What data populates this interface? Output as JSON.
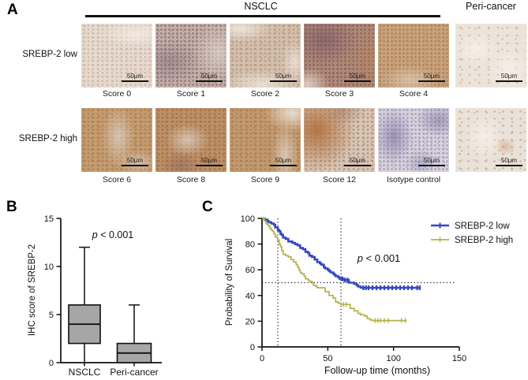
{
  "figure": {
    "panel_a": {
      "label": "A",
      "nsclc_header": "NSCLC",
      "peri_header": "Peri-cancer",
      "scale_label": "50μm",
      "rows": [
        {
          "row_label": "SREBP-2 low",
          "images": [
            {
              "id": "score-0",
              "caption": "Score 0"
            },
            {
              "id": "score-1",
              "caption": "Score 1"
            },
            {
              "id": "score-2",
              "caption": "Score 2"
            },
            {
              "id": "score-3",
              "caption": "Score 3"
            },
            {
              "id": "score-4",
              "caption": "Score 4"
            },
            {
              "id": "peri",
              "caption": ""
            }
          ]
        },
        {
          "row_label": "SREBP-2 high",
          "images": [
            {
              "id": "score-6",
              "caption": "Score 6"
            },
            {
              "id": "score-8",
              "caption": "Score 8"
            },
            {
              "id": "score-9",
              "caption": "Score 9"
            },
            {
              "id": "score-12",
              "caption": "Score 12"
            },
            {
              "id": "isotype",
              "caption": "Isotype control"
            },
            {
              "id": "peri2",
              "caption": ""
            }
          ]
        }
      ]
    },
    "panel_b": {
      "label": "B"
    },
    "panel_c": {
      "label": "C"
    }
  },
  "chart_data": [
    {
      "type": "boxplot",
      "panel": "B",
      "ylabel": "IHC score of SREBP-2",
      "ylim": [
        0,
        15
      ],
      "yticks": [
        0,
        5,
        10,
        15
      ],
      "categories": [
        "NSCLC",
        "Peri-cancer"
      ],
      "boxes": [
        {
          "category": "NSCLC",
          "min": 0,
          "q1": 2,
          "median": 4,
          "q3": 6,
          "max": 12
        },
        {
          "category": "Peri-cancer",
          "min": 0,
          "q1": 0,
          "median": 1,
          "q3": 2,
          "max": 6
        }
      ],
      "annotation": "p < 0.001",
      "box_fill": "#a6a6a6",
      "grid": false
    },
    {
      "type": "line",
      "subtype": "kaplan-meier-step",
      "panel": "C",
      "xlabel": "Follow-up time (months)",
      "ylabel": "Probability of Survival",
      "xlim": [
        0,
        150
      ],
      "ylim": [
        0,
        100
      ],
      "xticks": [
        0,
        50,
        100,
        150
      ],
      "yticks": [
        0,
        20,
        40,
        60,
        80,
        100
      ],
      "annotation": "p < 0.001",
      "legend_position": "top-right",
      "grid": false,
      "reference_lines": {
        "vertical_months": [
          12,
          60
        ],
        "horizontal_percent": 50
      },
      "series": [
        {
          "name": "SREBP-2 low",
          "color": "#3548c0",
          "steps": [
            [
              0,
              100
            ],
            [
              2,
              99
            ],
            [
              4,
              98
            ],
            [
              5,
              97
            ],
            [
              7,
              96
            ],
            [
              9,
              95
            ],
            [
              10,
              93
            ],
            [
              12,
              91
            ],
            [
              13,
              90
            ],
            [
              14,
              88
            ],
            [
              15,
              87
            ],
            [
              16,
              85
            ],
            [
              18,
              84
            ],
            [
              20,
              82
            ],
            [
              23,
              81
            ],
            [
              25,
              80
            ],
            [
              27,
              79
            ],
            [
              29,
              77
            ],
            [
              31,
              76
            ],
            [
              33,
              74
            ],
            [
              35,
              73
            ],
            [
              36,
              71
            ],
            [
              38,
              70
            ],
            [
              40,
              68
            ],
            [
              42,
              66
            ],
            [
              44,
              65
            ],
            [
              45,
              64
            ],
            [
              47,
              62
            ],
            [
              48,
              61
            ],
            [
              50,
              60
            ],
            [
              51,
              59
            ],
            [
              52,
              58
            ],
            [
              54,
              57
            ],
            [
              55,
              56
            ],
            [
              56,
              55
            ],
            [
              58,
              54
            ],
            [
              59,
              53
            ],
            [
              62,
              52
            ],
            [
              66,
              50
            ],
            [
              68,
              50
            ],
            [
              70,
              49
            ],
            [
              72,
              48
            ],
            [
              73,
              47
            ],
            [
              75,
              46
            ],
            [
              120,
              46
            ]
          ],
          "censor_marks": [
            [
              61,
              53
            ],
            [
              63,
              52
            ],
            [
              65,
              52
            ],
            [
              77,
              46
            ],
            [
              79,
              46
            ],
            [
              81,
              46
            ],
            [
              84,
              46
            ],
            [
              87,
              46
            ],
            [
              90,
              46
            ],
            [
              93,
              46
            ],
            [
              96,
              46
            ],
            [
              99,
              46
            ],
            [
              102,
              46
            ],
            [
              105,
              46
            ],
            [
              108,
              46
            ],
            [
              111,
              46
            ],
            [
              114,
              46
            ],
            [
              118,
              46
            ],
            [
              120,
              46
            ]
          ]
        },
        {
          "name": "SREBP-2 high",
          "color": "#b5b24b",
          "steps": [
            [
              0,
              100
            ],
            [
              2,
              98
            ],
            [
              3,
              96
            ],
            [
              4,
              95
            ],
            [
              5,
              94
            ],
            [
              6,
              92
            ],
            [
              7,
              91
            ],
            [
              8,
              90
            ],
            [
              9,
              88
            ],
            [
              10,
              86
            ],
            [
              11,
              85
            ],
            [
              12,
              83
            ],
            [
              13,
              80
            ],
            [
              14,
              78
            ],
            [
              15,
              75
            ],
            [
              16,
              72
            ],
            [
              18,
              71
            ],
            [
              20,
              70
            ],
            [
              22,
              68
            ],
            [
              24,
              66
            ],
            [
              26,
              64
            ],
            [
              27,
              62
            ],
            [
              28,
              60
            ],
            [
              29,
              58
            ],
            [
              30,
              57
            ],
            [
              32,
              55
            ],
            [
              33,
              53
            ],
            [
              35,
              52
            ],
            [
              36,
              51
            ],
            [
              38,
              50
            ],
            [
              39,
              48
            ],
            [
              41,
              47
            ],
            [
              42,
              46
            ],
            [
              47,
              46
            ],
            [
              48,
              43
            ],
            [
              51,
              40
            ],
            [
              54,
              38
            ],
            [
              56,
              35
            ],
            [
              58,
              34
            ],
            [
              60,
              33
            ],
            [
              65,
              33
            ],
            [
              67,
              30
            ],
            [
              70,
              28
            ],
            [
              73,
              26
            ],
            [
              75,
              25
            ],
            [
              78,
              24
            ],
            [
              80,
              22
            ],
            [
              82,
              21
            ],
            [
              84,
              20.5
            ],
            [
              110,
              20.5
            ]
          ],
          "censor_marks": [
            [
              62,
              33
            ],
            [
              64,
              33
            ],
            [
              86,
              20.5
            ],
            [
              88,
              20.5
            ],
            [
              90,
              20.5
            ],
            [
              93,
              20.5
            ],
            [
              96,
              20.5
            ],
            [
              106,
              20.5
            ],
            [
              109,
              20.5
            ]
          ]
        }
      ]
    }
  ]
}
